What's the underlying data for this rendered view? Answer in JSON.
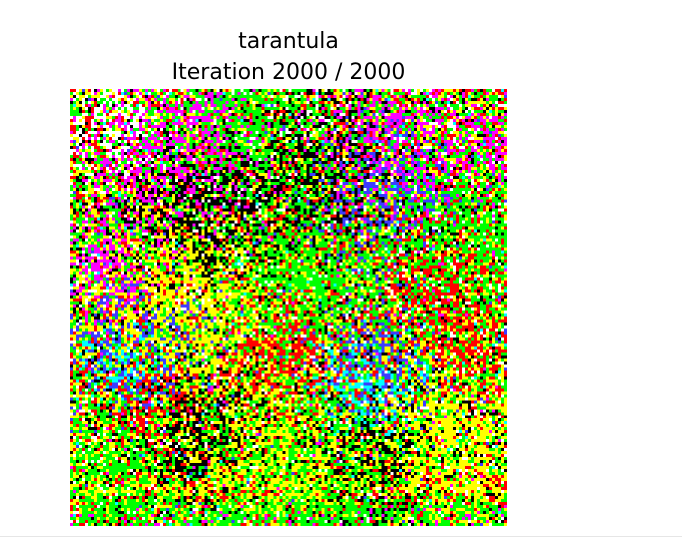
{
  "figure": {
    "title_line1": "tarantula",
    "title_line2": "Iteration 2000 / 2000"
  },
  "image": {
    "description_icon": "visualization-image",
    "palette": {
      "green": "#00ff00",
      "yellow": "#ffff00",
      "red": "#ff0000",
      "magenta": "#ff00ff",
      "blue": "#3c3cff",
      "cyan": "#00ffff",
      "black": "#000000",
      "white": "#ffffff"
    }
  }
}
